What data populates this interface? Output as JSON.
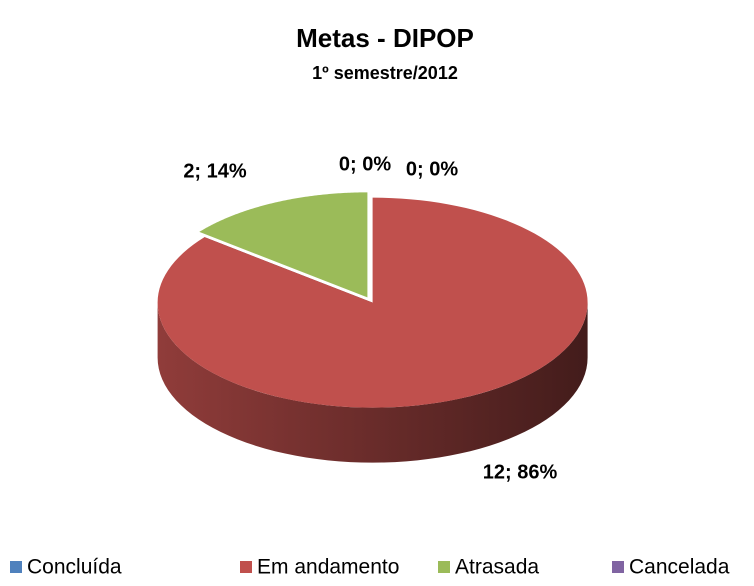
{
  "chart_data": {
    "type": "pie",
    "title": "Metas - DIPOP",
    "subtitle": "1º semestre/2012",
    "categories": [
      "Concluída",
      "Em andamento",
      "Atrasada",
      "Cancelada"
    ],
    "values": [
      0,
      12,
      2,
      0
    ],
    "value_labels": [
      "0; 0%",
      "12; 86%",
      "2; 14%",
      "0; 0%"
    ],
    "colors": [
      "#4f81bd",
      "#c0504d",
      "#9bbb59",
      "#8064a2"
    ],
    "legend": "bottom"
  }
}
